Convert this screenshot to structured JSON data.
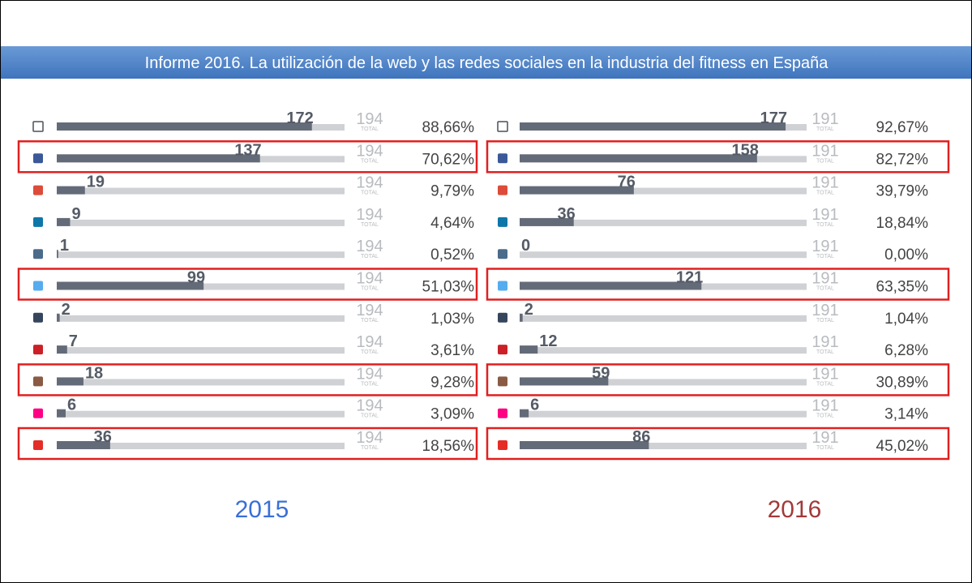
{
  "title": "Informe 2016. La utilización de la web y las redes sociales en la industria del fitness en España",
  "chart_data": [
    {
      "type": "bar",
      "orientation": "horizontal",
      "subtitle": "2015",
      "subtitle_color": "#3a6fd8",
      "values": [
        172,
        137,
        19,
        9,
        1,
        99,
        2,
        7,
        18,
        6,
        36
      ],
      "percent_labels": [
        "88,66%",
        "70,62%",
        "9,79%",
        "4,64%",
        "0,52%",
        "51,03%",
        "1,03%",
        "3,61%",
        "9,28%",
        "3,09%",
        "18,56%"
      ],
      "total": 194,
      "total_label": "TOTAL",
      "color": "#646b78",
      "track_color": "#cfd1d4",
      "highlighted": [
        1,
        5,
        8,
        10
      ],
      "highlight_color": "#e02020"
    },
    {
      "type": "bar",
      "orientation": "horizontal",
      "subtitle": "2016",
      "subtitle_color": "#a33a3a",
      "values": [
        177,
        158,
        76,
        36,
        0,
        121,
        2,
        12,
        59,
        6,
        86
      ],
      "percent_labels": [
        "92,67%",
        "82,72%",
        "39,79%",
        "18,84%",
        "0,00%",
        "63,35%",
        "1,04%",
        "6,28%",
        "30,89%",
        "3,14%",
        "45,02%"
      ],
      "total": 191,
      "total_label": "TOTAL",
      "color": "#646b78",
      "track_color": "#cfd1d4",
      "highlighted": [
        1,
        5,
        8,
        10
      ],
      "highlight_color": "#e02020"
    }
  ]
}
